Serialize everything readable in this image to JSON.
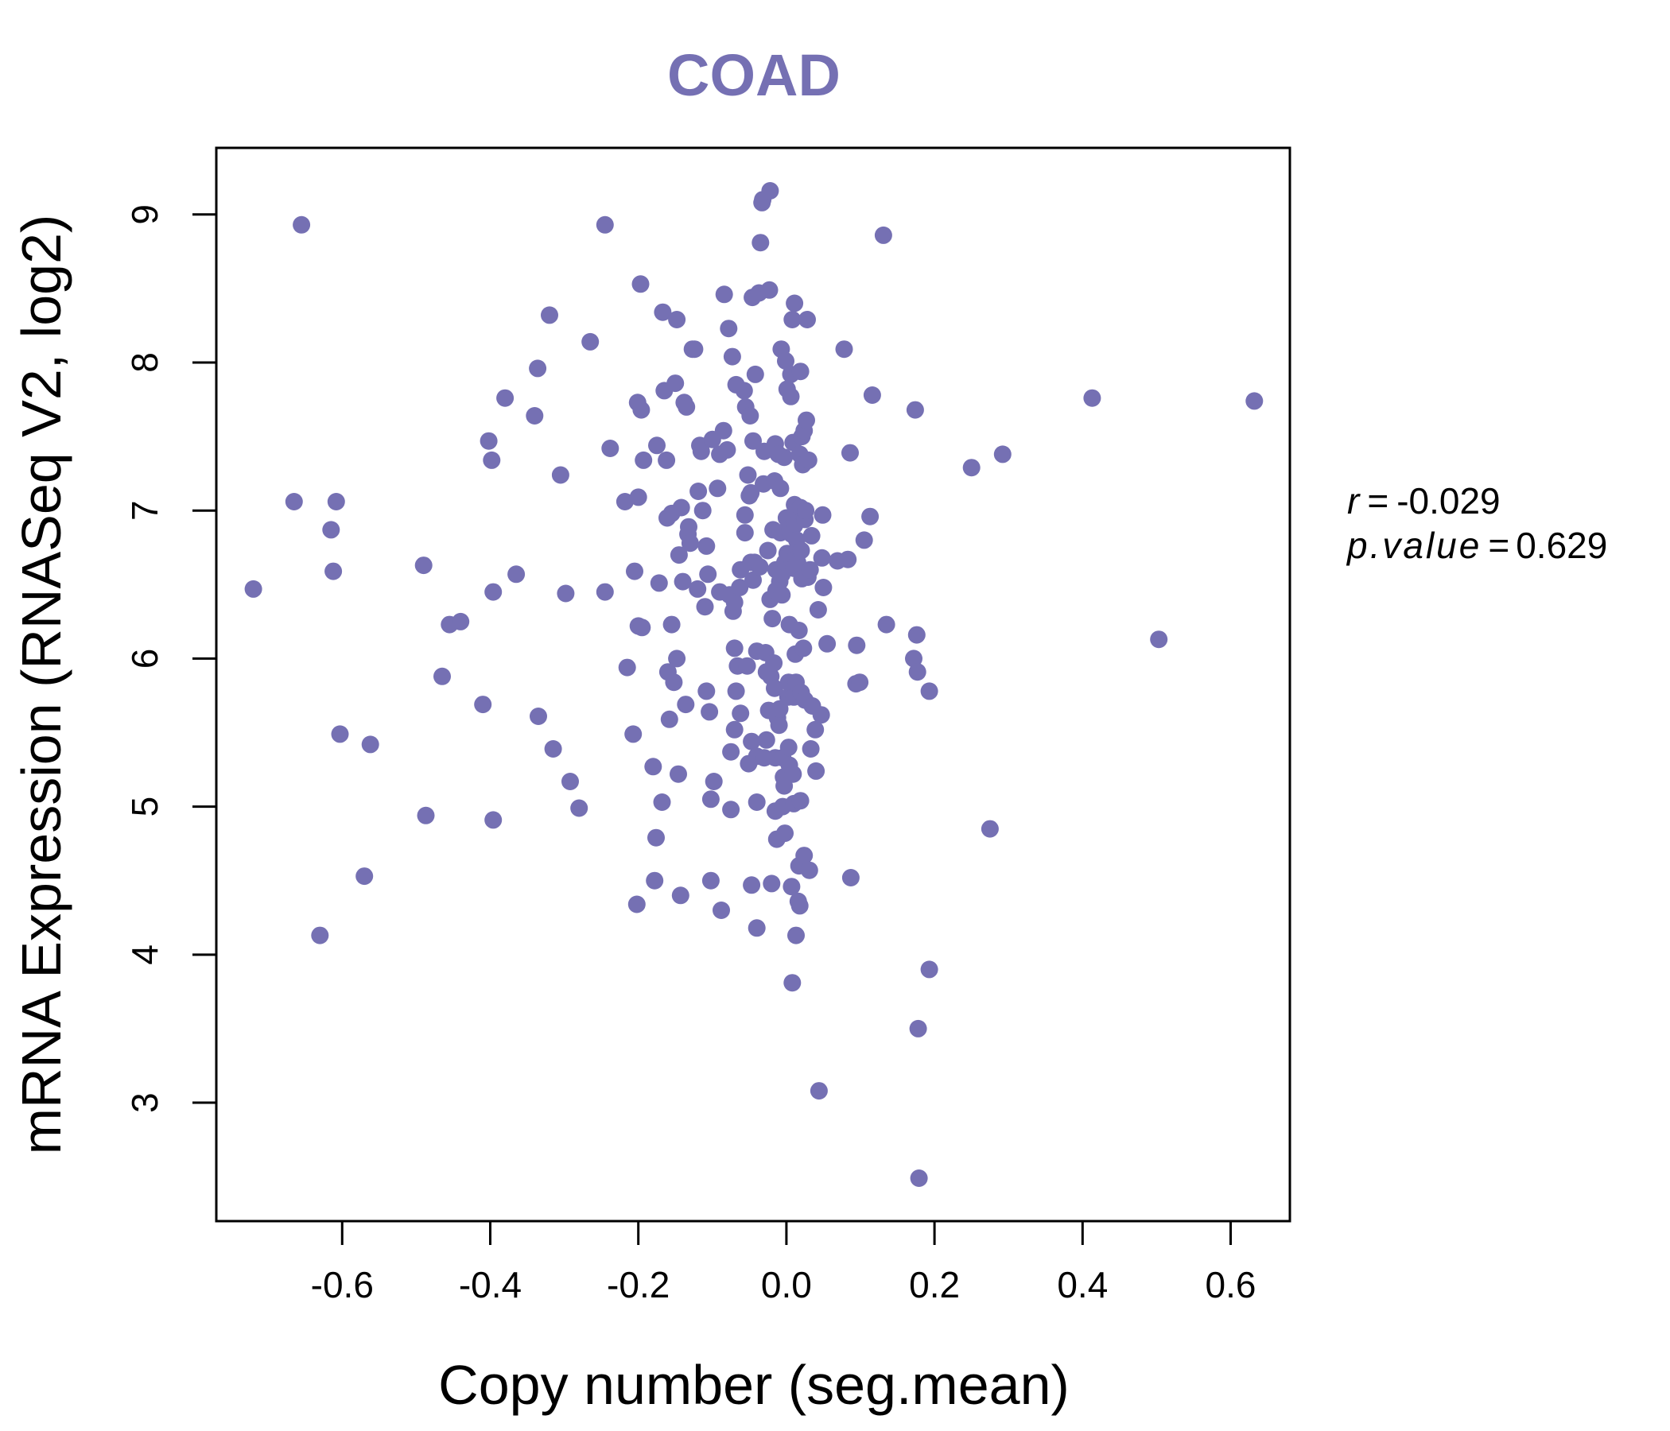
{
  "chart_data": {
    "type": "scatter",
    "title": "COAD",
    "xlabel": "Copy number (seg.mean)",
    "ylabel": "mRNA Expression (RNASeq V2, log2)",
    "xlim": [
      -0.77,
      0.68
    ],
    "ylim": [
      2.2,
      9.45
    ],
    "xticks": [
      -0.6,
      -0.4,
      -0.2,
      0.0,
      0.2,
      0.4,
      0.6
    ],
    "xtick_labels": [
      "-0.6",
      "-0.4",
      "-0.2",
      "0.0",
      "0.2",
      "0.4",
      "0.6"
    ],
    "yticks": [
      3,
      4,
      5,
      6,
      7,
      8,
      9
    ],
    "ytick_labels": [
      "3",
      "4",
      "5",
      "6",
      "7",
      "8",
      "9"
    ],
    "grid": false,
    "point_color": "#7570b3",
    "stats": {
      "r_label": "r",
      "r_value": "-0.029",
      "p_label": "p.value",
      "p_value": "0.629",
      "eq": "="
    },
    "points": [
      [
        -0.72,
        6.47
      ],
      [
        -0.665,
        7.06
      ],
      [
        -0.655,
        8.93
      ],
      [
        -0.63,
        4.13
      ],
      [
        -0.615,
        6.87
      ],
      [
        -0.612,
        6.59
      ],
      [
        -0.608,
        7.06
      ],
      [
        -0.603,
        5.49
      ],
      [
        -0.57,
        4.53
      ],
      [
        -0.562,
        5.42
      ],
      [
        -0.49,
        6.63
      ],
      [
        -0.487,
        4.94
      ],
      [
        -0.465,
        5.88
      ],
      [
        -0.455,
        6.23
      ],
      [
        -0.44,
        6.25
      ],
      [
        -0.41,
        5.69
      ],
      [
        -0.402,
        7.47
      ],
      [
        -0.398,
        7.34
      ],
      [
        -0.396,
        6.45
      ],
      [
        -0.396,
        4.91
      ],
      [
        -0.38,
        7.76
      ],
      [
        -0.365,
        6.57
      ],
      [
        -0.34,
        7.64
      ],
      [
        -0.336,
        7.96
      ],
      [
        -0.335,
        5.61
      ],
      [
        -0.32,
        8.32
      ],
      [
        -0.315,
        5.39
      ],
      [
        -0.305,
        7.24
      ],
      [
        -0.298,
        6.44
      ],
      [
        -0.292,
        5.17
      ],
      [
        -0.28,
        4.99
      ],
      [
        -0.265,
        8.14
      ],
      [
        -0.245,
        8.93
      ],
      [
        -0.245,
        6.45
      ],
      [
        -0.238,
        7.42
      ],
      [
        -0.218,
        7.06
      ],
      [
        -0.215,
        5.94
      ],
      [
        -0.207,
        5.49
      ],
      [
        -0.205,
        6.59
      ],
      [
        -0.202,
        4.34
      ],
      [
        -0.201,
        7.73
      ],
      [
        -0.2,
        7.09
      ],
      [
        -0.2,
        6.22
      ],
      [
        -0.197,
        8.53
      ],
      [
        -0.196,
        7.68
      ],
      [
        -0.195,
        6.21
      ],
      [
        -0.193,
        7.34
      ],
      [
        -0.18,
        5.27
      ],
      [
        -0.178,
        4.5
      ],
      [
        -0.176,
        4.79
      ],
      [
        -0.175,
        7.44
      ],
      [
        -0.172,
        6.51
      ],
      [
        -0.168,
        5.03
      ],
      [
        -0.167,
        8.34
      ],
      [
        -0.165,
        7.81
      ],
      [
        -0.162,
        7.34
      ],
      [
        -0.161,
        6.95
      ],
      [
        -0.16,
        5.91
      ],
      [
        -0.158,
        5.59
      ],
      [
        -0.155,
        6.98
      ],
      [
        -0.155,
        6.23
      ],
      [
        -0.152,
        5.84
      ],
      [
        -0.15,
        7.86
      ],
      [
        -0.148,
        8.29
      ],
      [
        -0.148,
        6.0
      ],
      [
        -0.146,
        5.22
      ],
      [
        -0.145,
        6.7
      ],
      [
        -0.143,
        4.4
      ],
      [
        -0.142,
        7.02
      ],
      [
        -0.14,
        6.52
      ],
      [
        -0.138,
        7.73
      ],
      [
        -0.136,
        5.69
      ],
      [
        -0.135,
        7.7
      ],
      [
        -0.133,
        6.84
      ],
      [
        -0.132,
        6.89
      ],
      [
        -0.13,
        6.78
      ],
      [
        -0.127,
        8.09
      ],
      [
        -0.124,
        8.09
      ],
      [
        -0.12,
        6.47
      ],
      [
        -0.119,
        7.13
      ],
      [
        -0.117,
        7.44
      ],
      [
        -0.115,
        7.4
      ],
      [
        -0.113,
        7.0
      ],
      [
        -0.11,
        6.35
      ],
      [
        -0.108,
        6.76
      ],
      [
        -0.108,
        5.78
      ],
      [
        -0.106,
        6.57
      ],
      [
        -0.104,
        5.64
      ],
      [
        -0.102,
        5.05
      ],
      [
        -0.102,
        4.5
      ],
      [
        -0.1,
        7.48
      ],
      [
        -0.098,
        5.17
      ],
      [
        -0.093,
        7.15
      ],
      [
        -0.09,
        7.38
      ],
      [
        -0.09,
        6.45
      ],
      [
        -0.088,
        4.3
      ],
      [
        -0.085,
        7.54
      ],
      [
        -0.084,
        8.46
      ],
      [
        -0.08,
        7.41
      ],
      [
        -0.078,
        8.23
      ],
      [
        -0.077,
        6.43
      ],
      [
        -0.075,
        5.37
      ],
      [
        -0.075,
        4.98
      ],
      [
        -0.073,
        8.04
      ],
      [
        -0.072,
        6.32
      ],
      [
        -0.07,
        6.38
      ],
      [
        -0.07,
        6.07
      ],
      [
        -0.07,
        5.52
      ],
      [
        -0.068,
        7.85
      ],
      [
        -0.068,
        5.78
      ],
      [
        -0.066,
        5.95
      ],
      [
        -0.063,
        6.48
      ],
      [
        -0.062,
        6.6
      ],
      [
        -0.062,
        5.63
      ],
      [
        -0.057,
        7.81
      ],
      [
        -0.056,
        6.97
      ],
      [
        -0.056,
        6.85
      ],
      [
        -0.055,
        7.7
      ],
      [
        -0.053,
        5.95
      ],
      [
        -0.052,
        7.24
      ],
      [
        -0.051,
        5.29
      ],
      [
        -0.05,
        7.1
      ],
      [
        -0.049,
        7.64
      ],
      [
        -0.048,
        7.12
      ],
      [
        -0.048,
        6.65
      ],
      [
        -0.047,
        4.47
      ],
      [
        -0.047,
        5.44
      ],
      [
        -0.046,
        8.44
      ],
      [
        -0.045,
        6.53
      ],
      [
        -0.045,
        7.47
      ],
      [
        -0.043,
        6.65
      ],
      [
        -0.042,
        7.92
      ],
      [
        -0.04,
        6.05
      ],
      [
        -0.04,
        5.34
      ],
      [
        -0.04,
        5.03
      ],
      [
        -0.04,
        4.18
      ],
      [
        -0.037,
        8.47
      ],
      [
        -0.036,
        6.62
      ],
      [
        -0.035,
        8.81
      ],
      [
        -0.033,
        9.08
      ],
      [
        -0.032,
        9.1
      ],
      [
        -0.031,
        7.18
      ],
      [
        -0.03,
        7.4
      ],
      [
        -0.03,
        5.33
      ],
      [
        -0.028,
        6.04
      ],
      [
        -0.027,
        5.91
      ],
      [
        -0.027,
        5.45
      ],
      [
        -0.025,
        6.73
      ],
      [
        -0.024,
        5.65
      ],
      [
        -0.023,
        8.49
      ],
      [
        -0.022,
        9.16
      ],
      [
        -0.022,
        6.4
      ],
      [
        -0.021,
        5.88
      ],
      [
        -0.02,
        4.48
      ],
      [
        -0.019,
        6.27
      ],
      [
        -0.018,
        6.87
      ],
      [
        -0.017,
        5.97
      ],
      [
        -0.016,
        7.2
      ],
      [
        -0.016,
        5.8
      ],
      [
        -0.015,
        7.45
      ],
      [
        -0.015,
        5.33
      ],
      [
        -0.015,
        4.97
      ],
      [
        -0.014,
        6.6
      ],
      [
        -0.014,
        6.46
      ],
      [
        -0.013,
        4.78
      ],
      [
        -0.012,
        5.6
      ],
      [
        -0.011,
        7.38
      ],
      [
        -0.01,
        5.55
      ],
      [
        -0.009,
        6.52
      ],
      [
        -0.009,
        5.66
      ],
      [
        -0.008,
        6.85
      ],
      [
        -0.008,
        7.15
      ],
      [
        -0.007,
        8.09
      ],
      [
        -0.006,
        6.57
      ],
      [
        -0.006,
        6.43
      ],
      [
        -0.005,
        5.33
      ],
      [
        -0.005,
        5.0
      ],
      [
        -0.004,
        5.2
      ],
      [
        -0.003,
        7.36
      ],
      [
        -0.003,
        5.14
      ],
      [
        -0.002,
        6.65
      ],
      [
        -0.002,
        4.82
      ],
      [
        -0.001,
        8.01
      ],
      [
        0.0,
        6.95
      ],
      [
        0.001,
        7.82
      ],
      [
        0.001,
        6.71
      ],
      [
        0.002,
        5.74
      ],
      [
        0.003,
        5.84
      ],
      [
        0.003,
        5.4
      ],
      [
        0.004,
        6.23
      ],
      [
        0.004,
        5.28
      ],
      [
        0.005,
        6.88
      ],
      [
        0.006,
        7.92
      ],
      [
        0.006,
        7.77
      ],
      [
        0.007,
        6.84
      ],
      [
        0.007,
        4.46
      ],
      [
        0.008,
        8.29
      ],
      [
        0.008,
        6.66
      ],
      [
        0.008,
        3.81
      ],
      [
        0.009,
        7.46
      ],
      [
        0.009,
        5.22
      ],
      [
        0.01,
        6.61
      ],
      [
        0.01,
        5.74
      ],
      [
        0.01,
        5.02
      ],
      [
        0.011,
        8.4
      ],
      [
        0.011,
        7.04
      ],
      [
        0.011,
        6.9
      ],
      [
        0.012,
        6.03
      ],
      [
        0.013,
        5.84
      ],
      [
        0.013,
        4.13
      ],
      [
        0.014,
        6.8
      ],
      [
        0.015,
        7.0
      ],
      [
        0.015,
        6.65
      ],
      [
        0.016,
        4.36
      ],
      [
        0.017,
        6.19
      ],
      [
        0.017,
        4.6
      ],
      [
        0.018,
        7.38
      ],
      [
        0.018,
        4.33
      ],
      [
        0.019,
        7.94
      ],
      [
        0.019,
        7.02
      ],
      [
        0.019,
        5.04
      ],
      [
        0.02,
        6.73
      ],
      [
        0.02,
        5.77
      ],
      [
        0.021,
        7.5
      ],
      [
        0.021,
        6.54
      ],
      [
        0.022,
        7.31
      ],
      [
        0.023,
        6.07
      ],
      [
        0.024,
        7.54
      ],
      [
        0.024,
        4.67
      ],
      [
        0.025,
        6.94
      ],
      [
        0.025,
        5.72
      ],
      [
        0.026,
        7.0
      ],
      [
        0.027,
        7.61
      ],
      [
        0.028,
        8.29
      ],
      [
        0.029,
        6.55
      ],
      [
        0.03,
        7.34
      ],
      [
        0.031,
        4.57
      ],
      [
        0.032,
        6.6
      ],
      [
        0.033,
        5.39
      ],
      [
        0.034,
        6.83
      ],
      [
        0.035,
        5.68
      ],
      [
        0.039,
        5.52
      ],
      [
        0.04,
        5.24
      ],
      [
        0.043,
        6.33
      ],
      [
        0.044,
        3.08
      ],
      [
        0.047,
        5.62
      ],
      [
        0.048,
        6.68
      ],
      [
        0.049,
        6.97
      ],
      [
        0.05,
        6.48
      ],
      [
        0.055,
        6.1
      ],
      [
        0.069,
        6.66
      ],
      [
        0.078,
        8.09
      ],
      [
        0.083,
        6.67
      ],
      [
        0.086,
        7.39
      ],
      [
        0.087,
        4.52
      ],
      [
        0.094,
        5.83
      ],
      [
        0.095,
        6.09
      ],
      [
        0.099,
        5.84
      ],
      [
        0.105,
        6.8
      ],
      [
        0.113,
        6.96
      ],
      [
        0.116,
        7.78
      ],
      [
        0.131,
        8.86
      ],
      [
        0.135,
        6.23
      ],
      [
        0.172,
        6.0
      ],
      [
        0.174,
        7.68
      ],
      [
        0.176,
        6.16
      ],
      [
        0.177,
        5.91
      ],
      [
        0.178,
        3.5
      ],
      [
        0.179,
        2.49
      ],
      [
        0.193,
        5.78
      ],
      [
        0.193,
        3.9
      ],
      [
        0.25,
        7.29
      ],
      [
        0.275,
        4.85
      ],
      [
        0.292,
        7.38
      ],
      [
        0.413,
        7.76
      ],
      [
        0.503,
        6.13
      ],
      [
        0.632,
        7.74
      ]
    ]
  }
}
